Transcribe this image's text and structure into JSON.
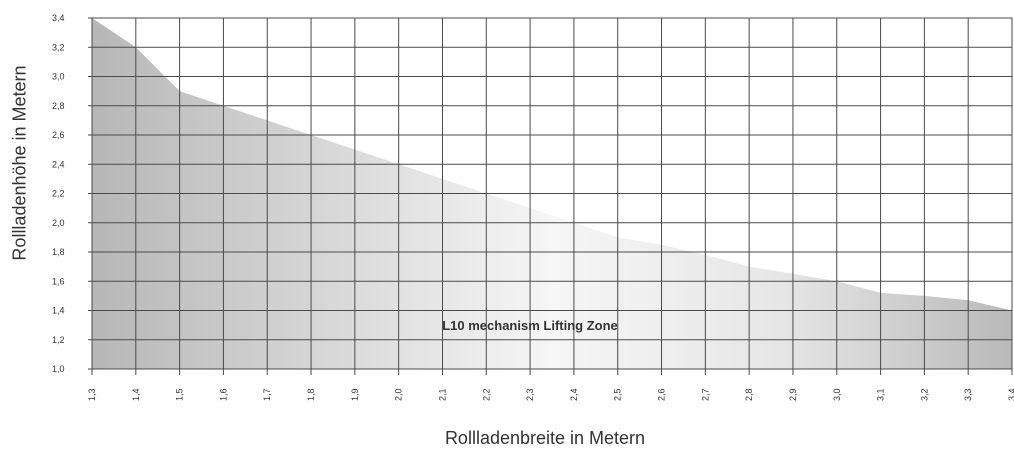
{
  "chart_data": {
    "type": "area",
    "title": "",
    "xlabel": "Rollladenbreite in Metern",
    "ylabel": "Rollladenhöhe in Metern",
    "annotation": "L10 mechanism Lifting Zone",
    "x": [
      1.3,
      1.4,
      1.5,
      1.6,
      1.7,
      1.8,
      1.9,
      2.0,
      2.1,
      2.2,
      2.3,
      2.4,
      2.5,
      2.6,
      2.7,
      2.8,
      2.9,
      3.0,
      3.1,
      3.2,
      3.3,
      3.4
    ],
    "y": [
      3.4,
      3.2,
      2.9,
      2.8,
      2.7,
      2.6,
      2.5,
      2.4,
      2.3,
      2.2,
      2.1,
      2.0,
      1.9,
      1.85,
      1.78,
      1.7,
      1.65,
      1.6,
      1.52,
      1.5,
      1.47,
      1.4
    ],
    "xticks": [
      "1,3",
      "1,4",
      "1,5",
      "1,6",
      "1,7",
      "1,8",
      "1,9",
      "2,0",
      "2,1",
      "2,2",
      "2,3",
      "2,4",
      "2,5",
      "2,6",
      "2,7",
      "2,8",
      "2,9",
      "3,0",
      "3,1",
      "3,2",
      "3,3",
      "3,4"
    ],
    "yticks": [
      "1,0",
      "1,2",
      "1,4",
      "1,6",
      "1,8",
      "2,0",
      "2,2",
      "2,4",
      "2,6",
      "2,8",
      "3,0",
      "3,2",
      "3,4"
    ],
    "xlim": [
      1.3,
      3.4
    ],
    "ylim": [
      1.0,
      3.4
    ],
    "grid": true,
    "colors": {
      "fill_dark": "#b8b8b8",
      "fill_light": "#f7f7f7",
      "grid": "#4a4a4a",
      "text": "#333333"
    }
  }
}
